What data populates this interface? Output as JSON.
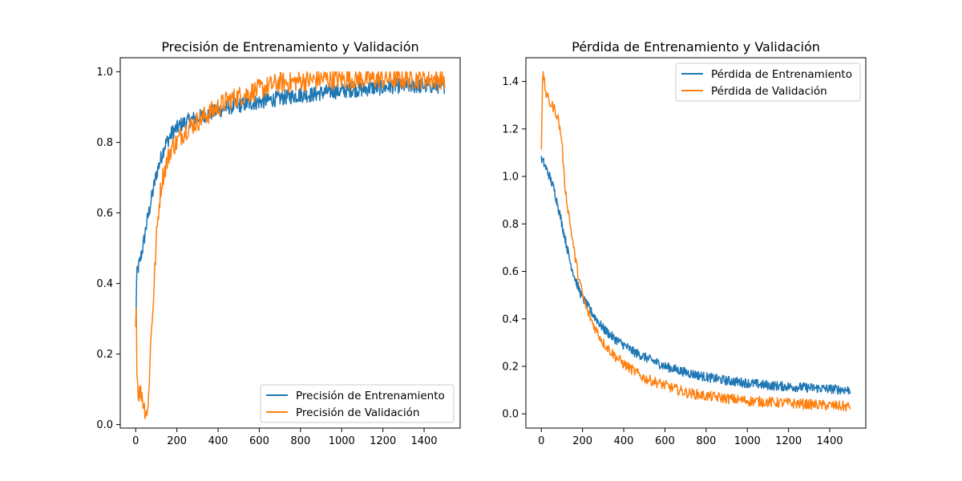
{
  "colors": {
    "train": "#1f77b4",
    "val": "#ff7f0e",
    "axis": "#000000",
    "legend_border": "#cccccc"
  },
  "chart_data": [
    {
      "type": "line",
      "title": "Precisión de Entrenamiento y Validación",
      "xlabel": "",
      "ylabel": "",
      "xlim": [
        -75,
        1575
      ],
      "ylim": [
        -0.01,
        1.04
      ],
      "xticks": [
        0,
        200,
        400,
        600,
        800,
        1000,
        1200,
        1400
      ],
      "yticks": [
        0.0,
        0.2,
        0.4,
        0.6,
        0.8,
        1.0
      ],
      "ytick_labels": [
        "0.0",
        "0.2",
        "0.4",
        "0.6",
        "0.8",
        "1.0"
      ],
      "legend": "lower-right",
      "grid": false,
      "series": [
        {
          "name": "Precisión de Entrenamiento",
          "x": [
            0,
            5,
            10,
            20,
            30,
            40,
            50,
            60,
            70,
            80,
            90,
            100,
            110,
            120,
            130,
            140,
            150,
            160,
            170,
            180,
            200,
            220,
            250,
            300,
            350,
            400,
            450,
            500,
            550,
            600,
            650,
            700,
            750,
            800,
            850,
            900,
            950,
            1000,
            1050,
            1100,
            1150,
            1200,
            1250,
            1300,
            1350,
            1400,
            1450,
            1500
          ],
          "values": [
            0.27,
            0.42,
            0.44,
            0.46,
            0.49,
            0.52,
            0.56,
            0.59,
            0.62,
            0.65,
            0.68,
            0.71,
            0.73,
            0.75,
            0.77,
            0.79,
            0.8,
            0.81,
            0.82,
            0.83,
            0.84,
            0.85,
            0.86,
            0.87,
            0.88,
            0.89,
            0.9,
            0.905,
            0.91,
            0.915,
            0.92,
            0.925,
            0.93,
            0.935,
            0.935,
            0.94,
            0.945,
            0.945,
            0.95,
            0.95,
            0.955,
            0.955,
            0.96,
            0.96,
            0.96,
            0.96,
            0.96,
            0.96
          ],
          "noise": 0.022,
          "samples": 700
        },
        {
          "name": "Precisión de Validación",
          "x": [
            0,
            2,
            4,
            8,
            10,
            20,
            30,
            40,
            50,
            60,
            70,
            80,
            90,
            100,
            110,
            120,
            130,
            140,
            150,
            160,
            170,
            180,
            200,
            220,
            250,
            300,
            350,
            400,
            450,
            500,
            550,
            600,
            650,
            700,
            750,
            800,
            850,
            900,
            950,
            1000,
            1100,
            1200,
            1300,
            1400,
            1500
          ],
          "values": [
            0.28,
            0.48,
            0.18,
            0.15,
            0.09,
            0.09,
            0.09,
            0.05,
            0.04,
            0.04,
            0.2,
            0.3,
            0.4,
            0.52,
            0.6,
            0.66,
            0.7,
            0.72,
            0.74,
            0.76,
            0.78,
            0.79,
            0.8,
            0.82,
            0.84,
            0.86,
            0.88,
            0.9,
            0.92,
            0.93,
            0.94,
            0.95,
            0.96,
            0.97,
            0.97,
            0.975,
            0.975,
            0.98,
            0.98,
            0.98,
            0.98,
            0.98,
            0.98,
            0.98,
            0.98
          ],
          "noise": 0.03,
          "samples": 500
        }
      ]
    },
    {
      "type": "line",
      "title": "Pérdida de Entrenamiento y Validación",
      "xlabel": "",
      "ylabel": "",
      "xlim": [
        -75,
        1575
      ],
      "ylim": [
        -0.06,
        1.5
      ],
      "xticks": [
        0,
        200,
        400,
        600,
        800,
        1000,
        1200,
        1400
      ],
      "yticks": [
        0.0,
        0.2,
        0.4,
        0.6,
        0.8,
        1.0,
        1.2,
        1.4
      ],
      "ytick_labels": [
        "0.0",
        "0.2",
        "0.4",
        "0.6",
        "0.8",
        "1.0",
        "1.2",
        "1.4"
      ],
      "legend": "upper-right",
      "grid": false,
      "series": [
        {
          "name": "Pérdida de Entrenamiento",
          "x": [
            0,
            10,
            20,
            40,
            60,
            80,
            100,
            120,
            140,
            160,
            180,
            200,
            220,
            250,
            300,
            350,
            400,
            450,
            500,
            550,
            600,
            700,
            800,
            900,
            1000,
            1100,
            1200,
            1300,
            1400,
            1500
          ],
          "values": [
            1.07,
            1.06,
            1.04,
            1.0,
            0.95,
            0.88,
            0.8,
            0.72,
            0.64,
            0.58,
            0.53,
            0.49,
            0.46,
            0.42,
            0.36,
            0.32,
            0.29,
            0.26,
            0.24,
            0.22,
            0.2,
            0.175,
            0.155,
            0.14,
            0.13,
            0.12,
            0.115,
            0.11,
            0.105,
            0.1
          ],
          "noise": 0.02,
          "samples": 700
        },
        {
          "name": "Pérdida de Validación",
          "x": [
            0,
            5,
            10,
            20,
            30,
            40,
            60,
            80,
            100,
            110,
            120,
            140,
            160,
            180,
            200,
            220,
            250,
            300,
            350,
            400,
            450,
            500,
            600,
            700,
            800,
            900,
            1000,
            1100,
            1200,
            1300,
            1400,
            1500
          ],
          "values": [
            1.12,
            1.38,
            1.43,
            1.36,
            1.33,
            1.31,
            1.29,
            1.25,
            1.15,
            1.0,
            0.92,
            0.8,
            0.68,
            0.58,
            0.5,
            0.44,
            0.38,
            0.3,
            0.25,
            0.21,
            0.18,
            0.15,
            0.12,
            0.09,
            0.075,
            0.065,
            0.055,
            0.05,
            0.045,
            0.04,
            0.035,
            0.03
          ],
          "noise": 0.022,
          "samples": 500
        }
      ]
    }
  ]
}
